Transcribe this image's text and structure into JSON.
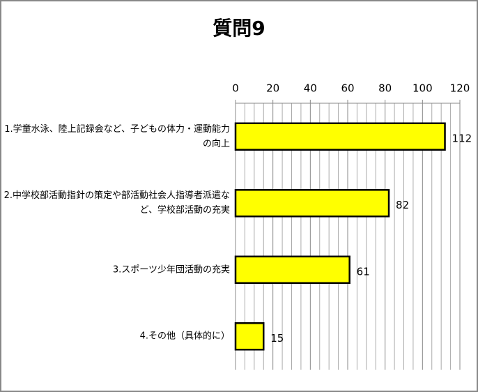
{
  "chart_data": {
    "type": "bar",
    "orientation": "horizontal",
    "title": "質問9",
    "categories": [
      "1.学童水泳、陸上記録会など、子どもの体力・運動能力の向上",
      "2.中学校部活動指針の策定や部活動社会人指導者派遣など、学校部活動の充実",
      "3.スポーツ少年団活動の充実",
      "4.その他（具体的に）"
    ],
    "values": [
      112,
      82,
      61,
      15
    ],
    "color": "#ffff00",
    "xlim": [
      0,
      120
    ],
    "xticks": [
      0,
      20,
      40,
      60,
      80,
      100,
      120
    ],
    "minor_xticks": [
      5,
      10,
      15,
      25,
      30,
      35,
      45,
      50,
      55,
      65,
      70,
      75,
      85,
      90,
      95,
      105,
      110,
      115
    ],
    "grid": true
  }
}
